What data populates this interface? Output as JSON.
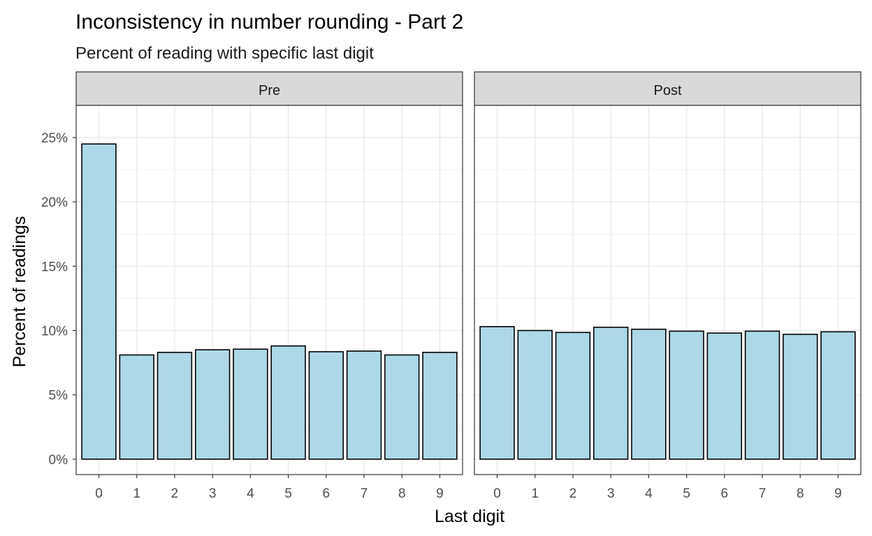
{
  "chart_data": {
    "type": "bar",
    "title": "Inconsistency in number rounding - Part 2",
    "subtitle": "Percent of reading with specific last digit",
    "xlabel": "Last digit",
    "ylabel": "Percent of readings",
    "categories": [
      "0",
      "1",
      "2",
      "3",
      "4",
      "5",
      "6",
      "7",
      "8",
      "9"
    ],
    "y_ticks": [
      "0%",
      "5%",
      "10%",
      "15%",
      "20%",
      "25%"
    ],
    "ylim": [
      -1.2,
      27.5
    ],
    "grid": true,
    "bar_fill": "#add8e6",
    "bar_stroke": "#000000",
    "panels": [
      {
        "label": "Pre",
        "values": [
          24.5,
          8.1,
          8.3,
          8.5,
          8.55,
          8.8,
          8.35,
          8.4,
          8.1,
          8.3
        ]
      },
      {
        "label": "Post",
        "values": [
          10.3,
          10.0,
          9.85,
          10.25,
          10.1,
          9.95,
          9.8,
          9.95,
          9.7,
          9.9
        ]
      }
    ]
  }
}
